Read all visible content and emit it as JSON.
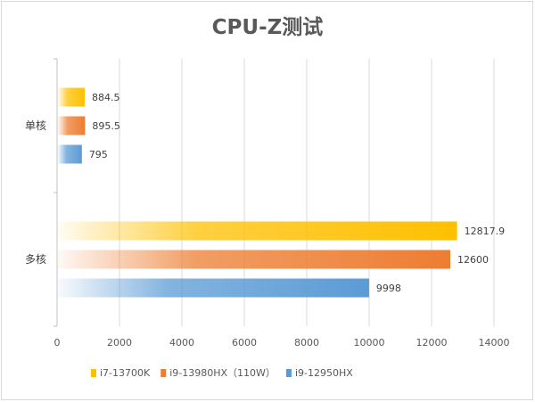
{
  "chart_data": {
    "type": "bar",
    "orientation": "horizontal",
    "title": "CPU-Z测试",
    "categories": [
      "单核",
      "多核"
    ],
    "series": [
      {
        "name": "i7-13700K",
        "values": [
          884.5,
          12817.9
        ],
        "labels": [
          "884.5",
          "12817.9"
        ],
        "color": "#FFC000"
      },
      {
        "name": "i9-13980HX（110W）",
        "values": [
          895.5,
          12600
        ],
        "labels": [
          "895.5",
          "12600"
        ],
        "color": "#ED7D31"
      },
      {
        "name": "i9-12950HX",
        "values": [
          795,
          9998
        ],
        "labels": [
          "795",
          "9998"
        ],
        "color": "#5B9BD5"
      }
    ],
    "xlim": [
      0,
      14000
    ],
    "xticks": [
      0,
      2000,
      4000,
      6000,
      8000,
      10000,
      12000,
      14000
    ],
    "grid": "vertical",
    "legend": "bottom-left"
  }
}
